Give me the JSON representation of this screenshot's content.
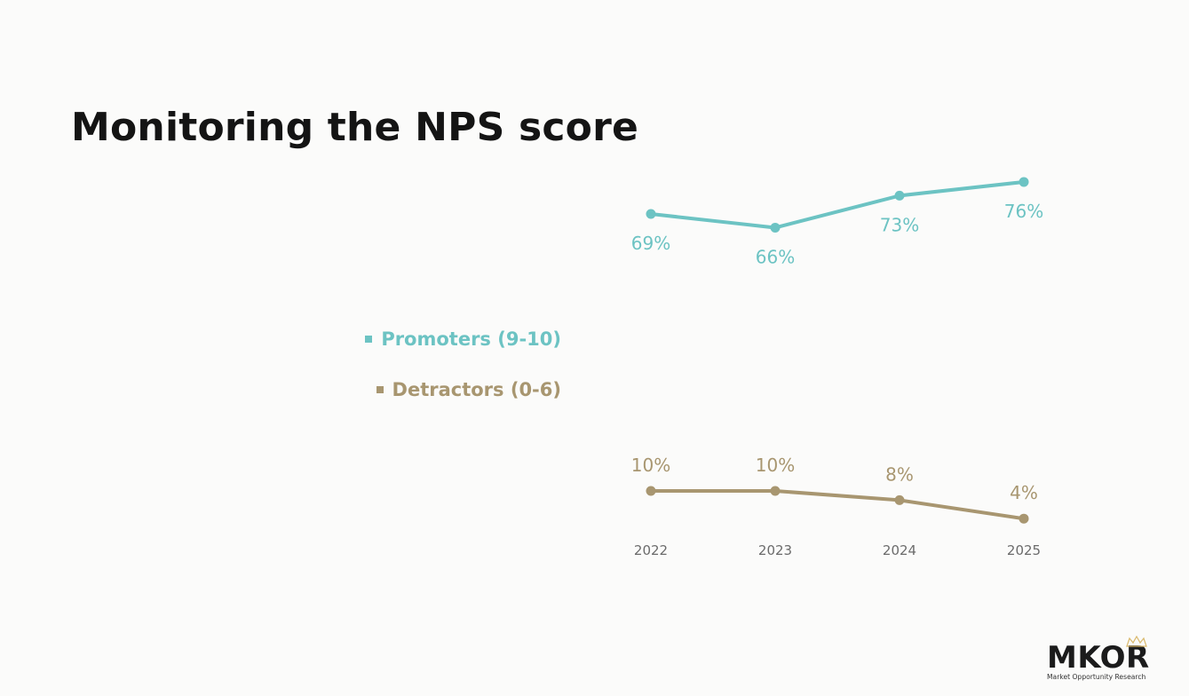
{
  "title": "Monitoring the NPS score",
  "legend": {
    "promoters": "Promoters (9-10)",
    "detractors": "Detractors (0-6)"
  },
  "colors": {
    "promoters": "#6cc3c3",
    "detractors": "#a89670",
    "year_label": "#6b6b6b"
  },
  "chart_data": {
    "type": "line",
    "x": [
      "2022",
      "2023",
      "2024",
      "2025"
    ],
    "series": [
      {
        "name": "Promoters (9-10)",
        "values": [
          69,
          66,
          73,
          76
        ],
        "labels": [
          "69%",
          "66%",
          "73%",
          "76%"
        ]
      },
      {
        "name": "Detractors (0-6)",
        "values": [
          10,
          10,
          8,
          4
        ],
        "labels": [
          "10%",
          "10%",
          "8%",
          "4%"
        ]
      }
    ],
    "grid": false,
    "legend_position": "left"
  },
  "logo": {
    "wordmark": "MKOR",
    "tagline": "Market Opportunity Research"
  }
}
